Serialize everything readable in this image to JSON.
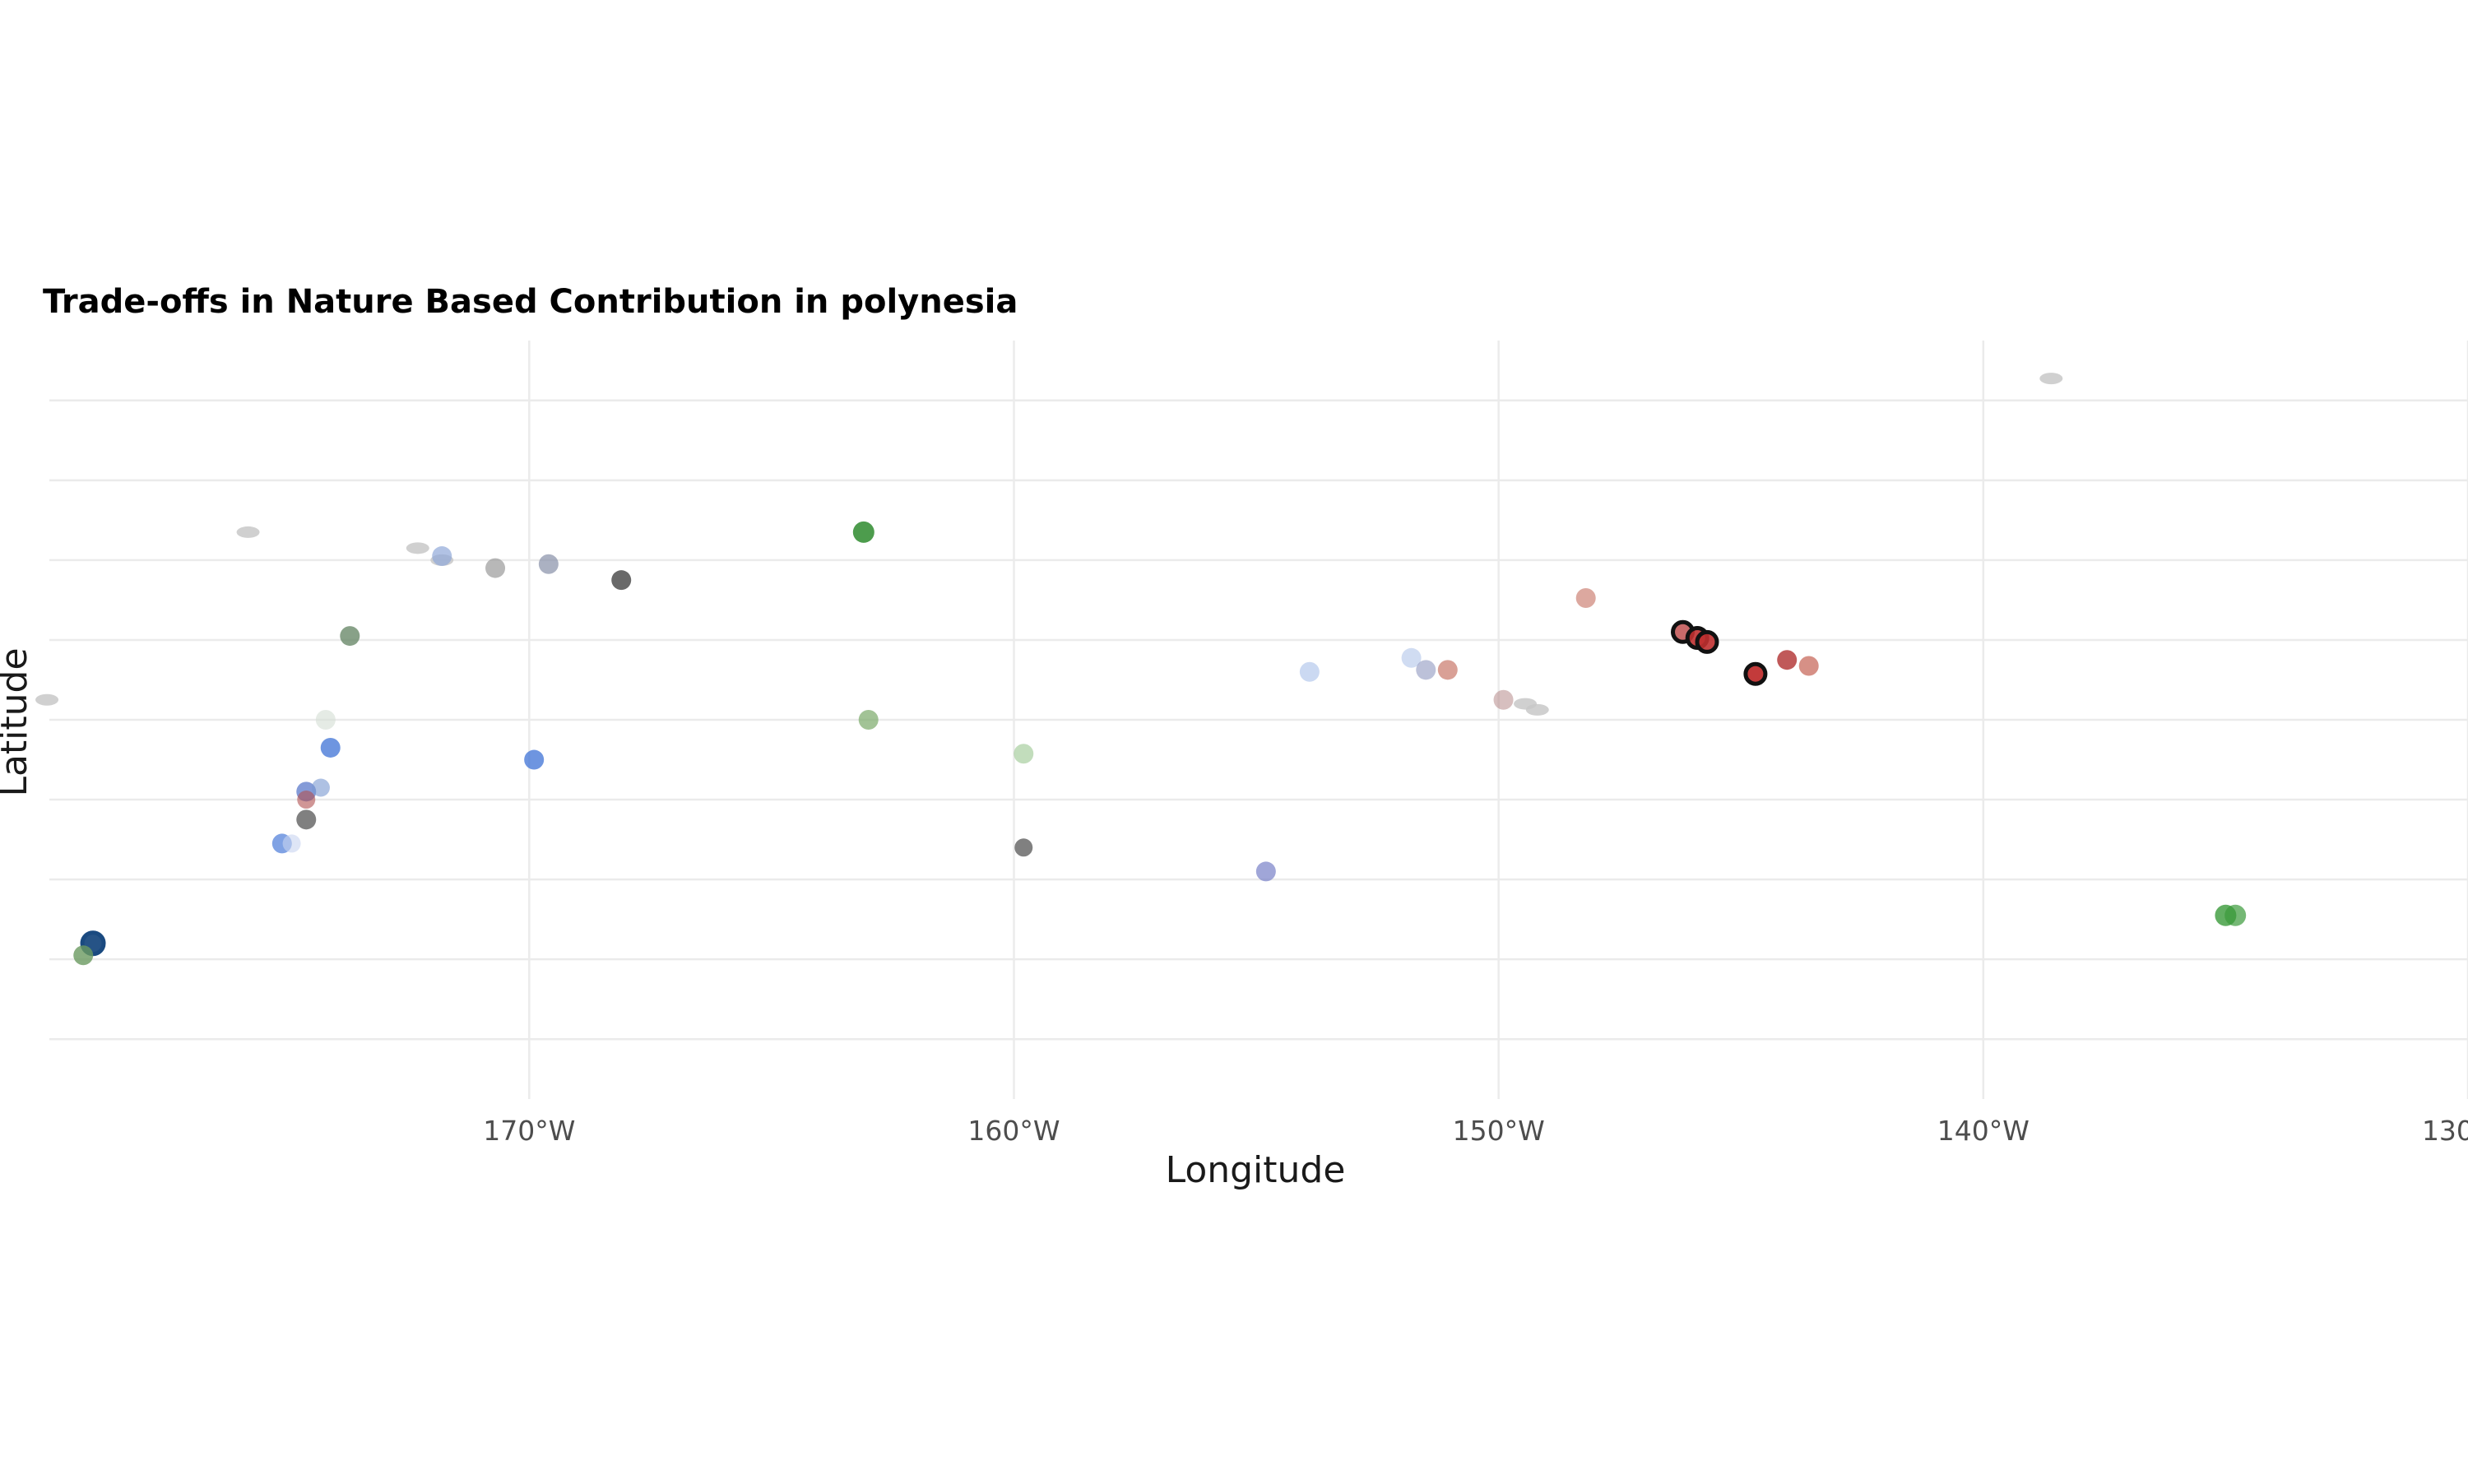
{
  "chart_data": {
    "type": "scatter",
    "title": "Trade-offs in Nature Based Contribution in polynesia",
    "xlabel": "Longitude",
    "ylabel": "Latitude",
    "x_ticks": [
      -170,
      -160,
      -150,
      -140,
      -130
    ],
    "x_tick_labels": [
      "170°W",
      "160°W",
      "150°W",
      "140°W",
      "130°W"
    ],
    "xlim": [
      -179.9,
      -130
    ],
    "ylim": [
      -27.5,
      -8.5
    ],
    "y_gridlines": [
      -26,
      -24,
      -22,
      -20,
      -18,
      -16,
      -14,
      -12,
      -10
    ],
    "grid": true,
    "legend": "none",
    "colors": {
      "land": "#c8c8c8",
      "grid": "#ebebeb",
      "highlight_stroke": "#111111"
    },
    "islands": [
      {
        "x": -172.3,
        "y": -13.7
      },
      {
        "x": -171.8,
        "y": -14.0
      },
      {
        "x": -149.45,
        "y": -17.6
      },
      {
        "x": -149.2,
        "y": -17.75
      },
      {
        "x": -179.95,
        "y": -17.5
      },
      {
        "x": -175.8,
        "y": -13.3
      },
      {
        "x": -138.6,
        "y": -9.45
      }
    ],
    "points": [
      {
        "x": -163.1,
        "y": -13.3,
        "color": "#2e8b2e",
        "opacity": 0.85,
        "size": 13
      },
      {
        "x": -171.8,
        "y": -13.9,
        "color": "#90a8d8",
        "opacity": 0.7,
        "size": 12
      },
      {
        "x": -170.7,
        "y": -14.2,
        "color": "#9a9a9a",
        "opacity": 0.7,
        "size": 12
      },
      {
        "x": -169.6,
        "y": -14.1,
        "color": "#8890a8",
        "opacity": 0.7,
        "size": 12
      },
      {
        "x": -168.1,
        "y": -14.5,
        "color": "#444444",
        "opacity": 0.8,
        "size": 12
      },
      {
        "x": -173.7,
        "y": -15.9,
        "color": "#6a8a6a",
        "opacity": 0.8,
        "size": 12
      },
      {
        "x": -174.2,
        "y": -18.0,
        "color": "#d4ddd4",
        "opacity": 0.6,
        "size": 12
      },
      {
        "x": -174.1,
        "y": -18.7,
        "color": "#4a7ad8",
        "opacity": 0.8,
        "size": 12
      },
      {
        "x": -169.9,
        "y": -19.0,
        "color": "#4a7ad8",
        "opacity": 0.8,
        "size": 12
      },
      {
        "x": -174.6,
        "y": -19.8,
        "color": "#5070c8",
        "opacity": 0.7,
        "size": 12
      },
      {
        "x": -174.6,
        "y": -20.0,
        "color": "#b05050",
        "opacity": 0.6,
        "size": 11
      },
      {
        "x": -174.3,
        "y": -19.7,
        "color": "#7898d0",
        "opacity": 0.6,
        "size": 11
      },
      {
        "x": -174.6,
        "y": -20.5,
        "color": "#555555",
        "opacity": 0.75,
        "size": 12
      },
      {
        "x": -175.1,
        "y": -21.1,
        "color": "#4a7ad8",
        "opacity": 0.7,
        "size": 12
      },
      {
        "x": -174.9,
        "y": -21.1,
        "color": "#c8d4f0",
        "opacity": 0.6,
        "size": 11
      },
      {
        "x": -179.0,
        "y": -23.6,
        "color": "#1a4a80",
        "opacity": 0.95,
        "size": 13,
        "stroke": "#1a4a80"
      },
      {
        "x": -179.2,
        "y": -23.9,
        "color": "#6a9a60",
        "opacity": 0.8,
        "size": 12
      },
      {
        "x": -163.0,
        "y": -18.0,
        "color": "#7aaa6a",
        "opacity": 0.7,
        "size": 12
      },
      {
        "x": -159.8,
        "y": -18.85,
        "color": "#a8cfa0",
        "opacity": 0.7,
        "size": 12
      },
      {
        "x": -159.8,
        "y": -21.2,
        "color": "#555555",
        "opacity": 0.75,
        "size": 11
      },
      {
        "x": -154.8,
        "y": -21.8,
        "color": "#7880c8",
        "opacity": 0.7,
        "size": 12
      },
      {
        "x": -153.9,
        "y": -16.8,
        "color": "#a8bfea",
        "opacity": 0.6,
        "size": 12
      },
      {
        "x": -151.8,
        "y": -16.45,
        "color": "#b0c4ea",
        "opacity": 0.6,
        "size": 12
      },
      {
        "x": -151.5,
        "y": -16.75,
        "color": "#9098c0",
        "opacity": 0.6,
        "size": 12
      },
      {
        "x": -151.05,
        "y": -16.75,
        "color": "#c06050",
        "opacity": 0.6,
        "size": 12
      },
      {
        "x": -149.9,
        "y": -17.5,
        "color": "#b08080",
        "opacity": 0.5,
        "size": 12
      },
      {
        "x": -148.2,
        "y": -14.95,
        "color": "#c06050",
        "opacity": 0.55,
        "size": 12
      },
      {
        "x": -146.2,
        "y": -15.8,
        "color": "#c05050",
        "opacity": 0.85,
        "size": 12,
        "stroke": "#111111"
      },
      {
        "x": -145.9,
        "y": -15.95,
        "color": "#c03030",
        "opacity": 0.9,
        "size": 12,
        "stroke": "#111111"
      },
      {
        "x": -145.7,
        "y": -16.05,
        "color": "#c03030",
        "opacity": 0.9,
        "size": 12,
        "stroke": "#111111"
      },
      {
        "x": -144.7,
        "y": -16.85,
        "color": "#c03030",
        "opacity": 0.95,
        "size": 12,
        "stroke": "#111111"
      },
      {
        "x": -144.05,
        "y": -16.5,
        "color": "#b03030",
        "opacity": 0.8,
        "size": 12
      },
      {
        "x": -143.6,
        "y": -16.65,
        "color": "#c05545",
        "opacity": 0.65,
        "size": 12
      },
      {
        "x": -135.0,
        "y": -22.9,
        "color": "#3a9a3a",
        "opacity": 0.8,
        "size": 13
      },
      {
        "x": -134.8,
        "y": -22.9,
        "color": "#3a9a3a",
        "opacity": 0.7,
        "size": 13
      }
    ]
  }
}
